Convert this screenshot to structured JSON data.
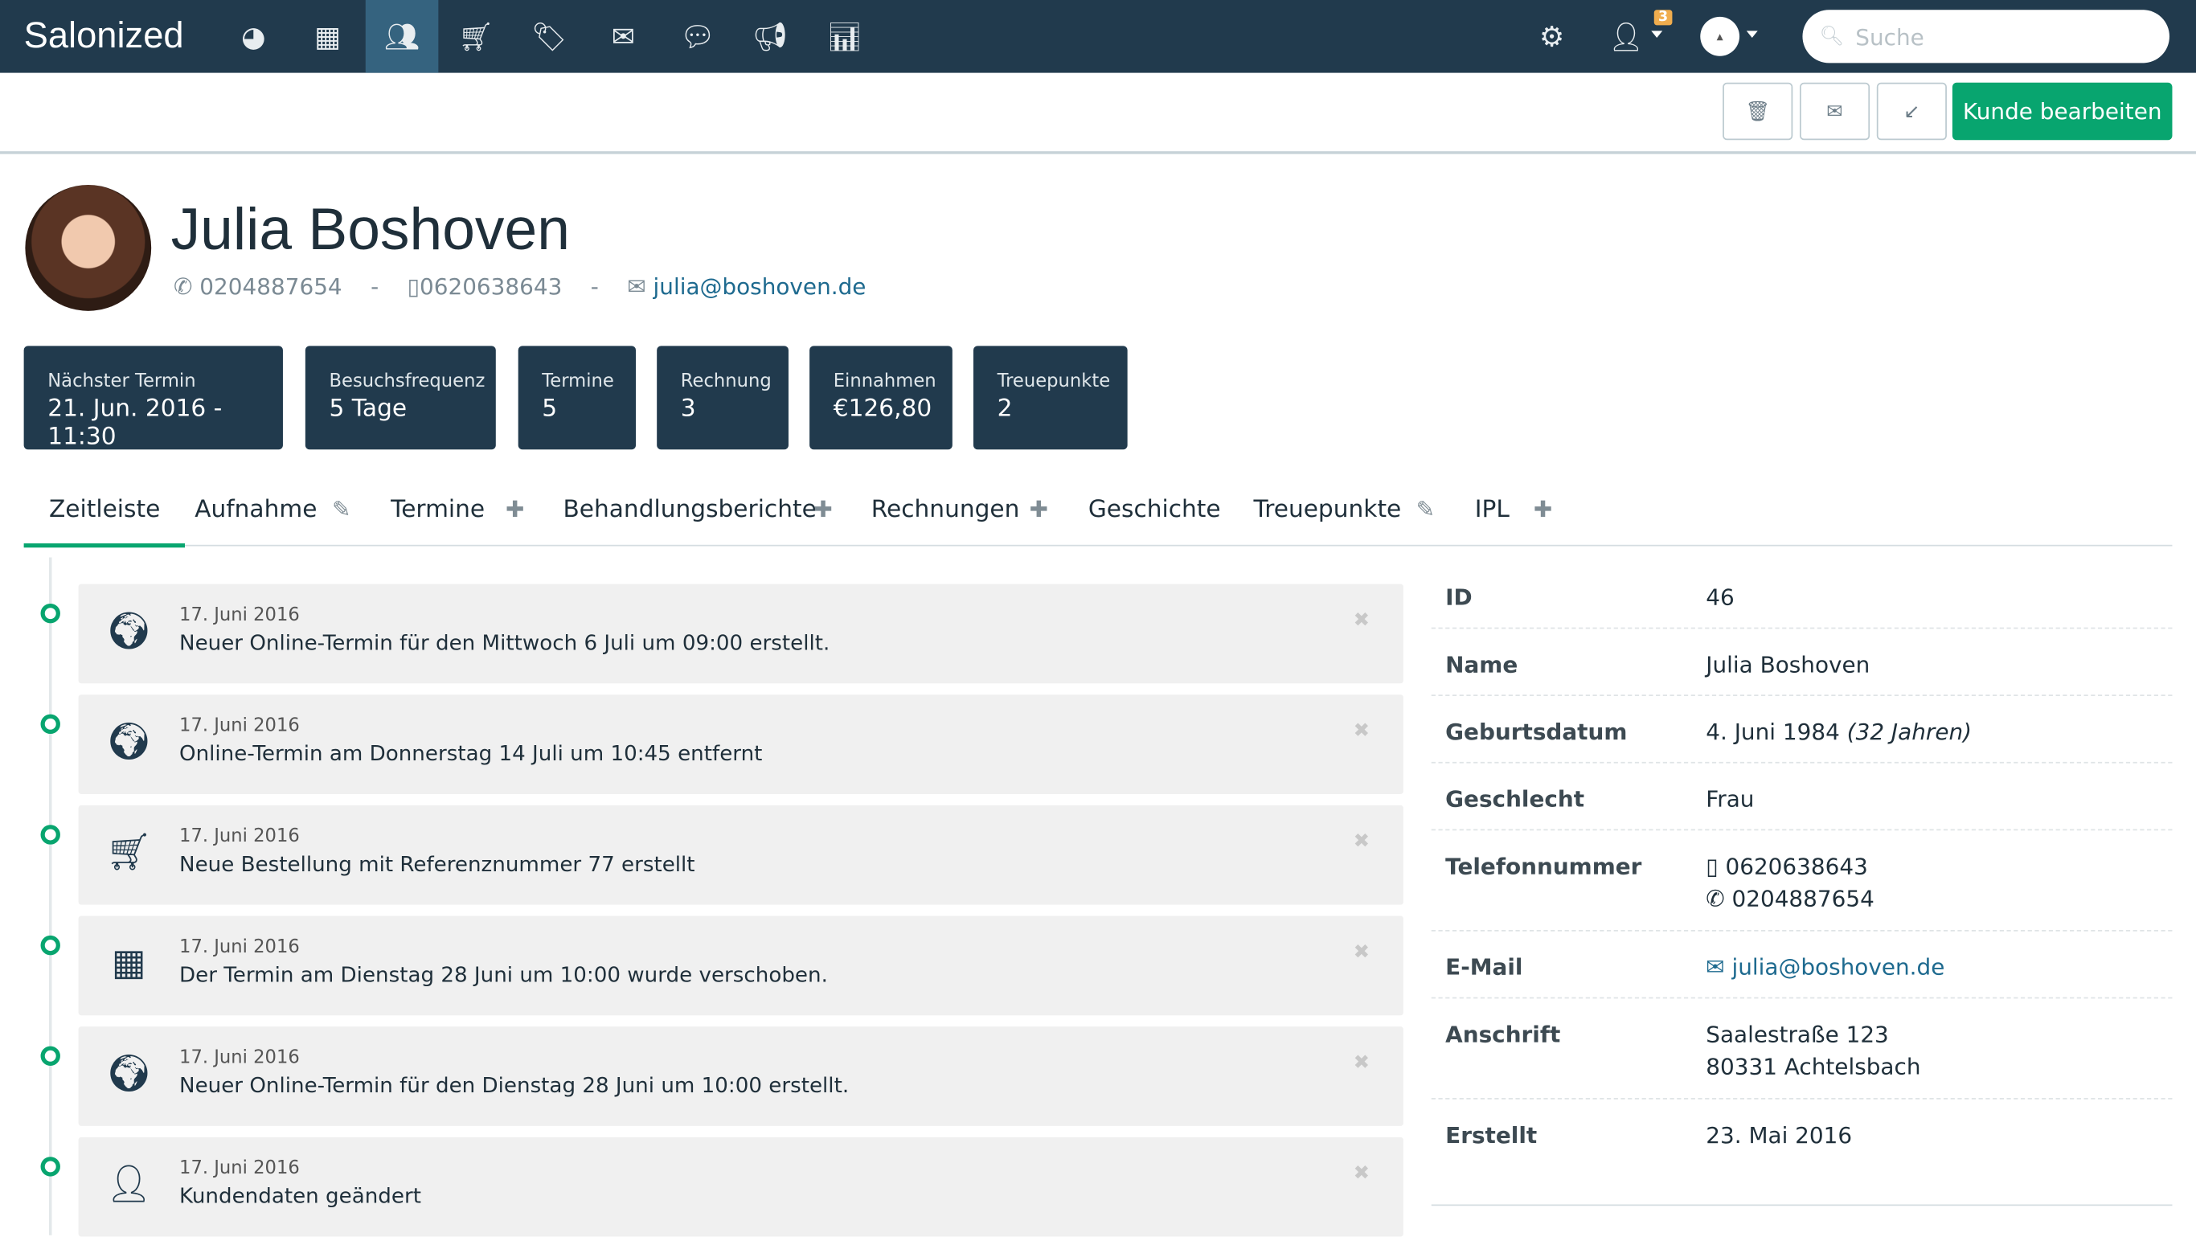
{
  "app": {
    "brand": "Salonized"
  },
  "nav": {
    "items": [
      {
        "icon": "dashboard-icon",
        "label": "Dashboard"
      },
      {
        "icon": "calendar-icon",
        "label": "Agenda"
      },
      {
        "icon": "customers-icon",
        "label": "Kunden",
        "active": true
      },
      {
        "icon": "cart-icon",
        "label": "Kasse"
      },
      {
        "icon": "tags-icon",
        "label": "Produkte"
      },
      {
        "icon": "envelope-icon",
        "label": "Nachrichten"
      },
      {
        "icon": "chat-icon",
        "label": "Feedback"
      },
      {
        "icon": "megaphone-icon",
        "label": "Marketing"
      },
      {
        "icon": "bar-chart-icon",
        "label": "Berichte"
      }
    ],
    "notification_count": "3",
    "search_placeholder": "Suche",
    "search_value": ""
  },
  "toolbar": {
    "edit_label": "Kunde bearbeiten"
  },
  "customer": {
    "name": "Julia Boshoven",
    "phone": "0204887654",
    "mobile": "0620638643",
    "email": "julia@boshoven.de",
    "separator": "-"
  },
  "stats": [
    {
      "label": "Nächster Termin",
      "value": "21. Jun. 2016 - 11:30"
    },
    {
      "label": "Besuchsfrequenz",
      "value": "5 Tage"
    },
    {
      "label": "Termine",
      "value": "5"
    },
    {
      "label": "Rechnung",
      "value": "3"
    },
    {
      "label": "Einnahmen",
      "value": "€126,80"
    },
    {
      "label": "Treuepunkte",
      "value": "2"
    }
  ],
  "tabs": [
    {
      "label": "Zeitleiste",
      "active": true
    },
    {
      "label": "Aufnahme",
      "action": "edit"
    },
    {
      "label": "Termine",
      "action": "add"
    },
    {
      "label": "Behandlungsberichte",
      "action": "add"
    },
    {
      "label": "Rechnungen",
      "action": "add"
    },
    {
      "label": "Geschichte"
    },
    {
      "label": "Treuepunkte",
      "action": "edit"
    },
    {
      "label": "IPL",
      "action": "add"
    }
  ],
  "timeline": [
    {
      "icon": "globe-icon",
      "date": "17. Juni 2016",
      "text": "Neuer Online-Termin für den Mittwoch 6 Juli um 09:00 erstellt."
    },
    {
      "icon": "globe-icon",
      "date": "17. Juni 2016",
      "text": "Online-Termin am Donnerstag 14 Juli um 10:45 entfernt"
    },
    {
      "icon": "cart-icon",
      "date": "17. Juni 2016",
      "text": "Neue Bestellung mit Referenznummer 77 erstellt"
    },
    {
      "icon": "calendar-icon",
      "date": "17. Juni 2016",
      "text": "Der Termin am Dienstag 28 Juni um 10:00 wurde verschoben."
    },
    {
      "icon": "globe-icon",
      "date": "17. Juni 2016",
      "text": "Neuer Online-Termin für den Dienstag 28 Juni um 10:00 erstellt."
    },
    {
      "icon": "user-icon",
      "date": "17. Juni 2016",
      "text": "Kundendaten geändert"
    }
  ],
  "details": {
    "id": {
      "label": "ID",
      "value": "46"
    },
    "name": {
      "label": "Name",
      "value": "Julia Boshoven"
    },
    "birth": {
      "label": "Geburtsdatum",
      "value": "4. Juni 1984",
      "age": "(32 Jahren)"
    },
    "gender": {
      "label": "Geschlecht",
      "value": "Frau"
    },
    "phone": {
      "label": "Telefonnummer",
      "mobile": "0620638643",
      "phone": "0204887654"
    },
    "email": {
      "label": "E-Mail",
      "value": "julia@boshoven.de"
    },
    "address": {
      "label": "Anschrift",
      "street": "Saalestraße 123",
      "city": "80331 Achtelsbach"
    },
    "created": {
      "label": "Erstellt",
      "value": "23. Mai 2016"
    }
  }
}
